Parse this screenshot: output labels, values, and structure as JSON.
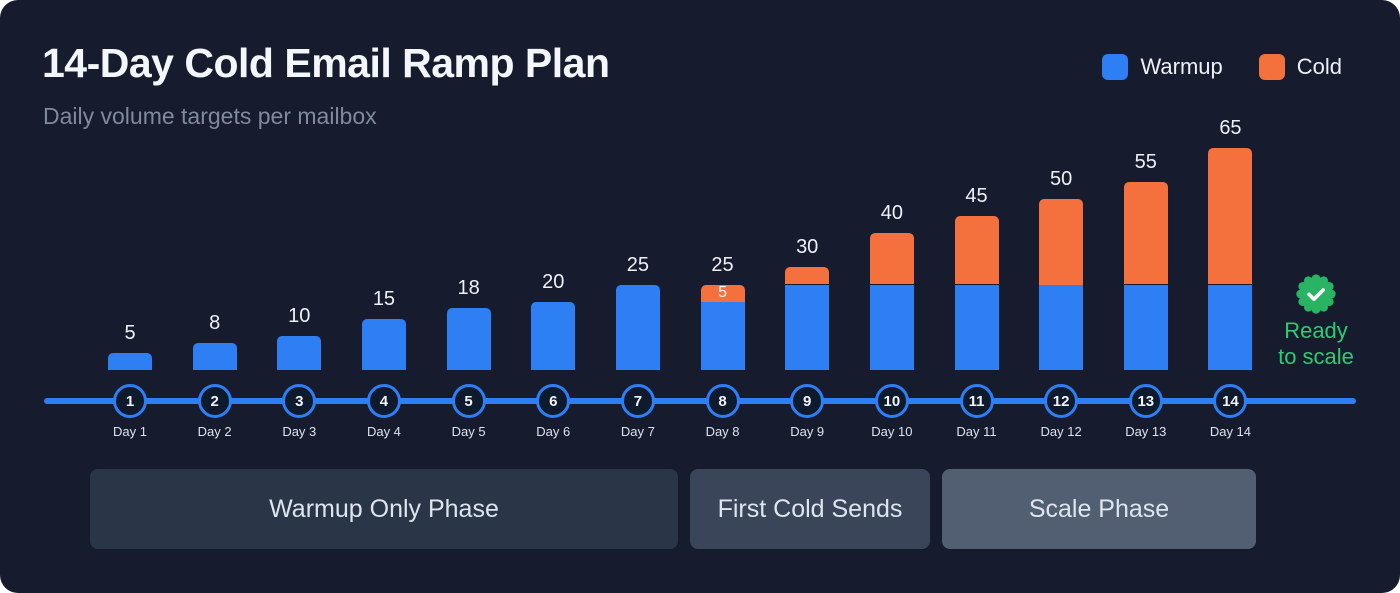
{
  "colors": {
    "background": "#161c2e",
    "accent_blue": "#2e7ef4",
    "accent_orange": "#f4703c",
    "success_green": "#28b463"
  },
  "header": {
    "title": "14-Day Cold Email Ramp Plan",
    "subtitle": "Daily volume targets per mailbox"
  },
  "legend": [
    {
      "label": "Warmup",
      "color": "#2e7ef4"
    },
    {
      "label": "Cold",
      "color": "#f4703c"
    }
  ],
  "chart_data": {
    "type": "bar",
    "stacked": true,
    "title": "14-Day Cold Email Ramp Plan",
    "categories": [
      "Day 1",
      "Day 2",
      "Day 3",
      "Day 4",
      "Day 5",
      "Day 6",
      "Day 7",
      "Day 8",
      "Day 9",
      "Day 10",
      "Day 11",
      "Day 12",
      "Day 13",
      "Day 14"
    ],
    "series": [
      {
        "name": "Warmup",
        "color": "#2e7ef4",
        "values": [
          5,
          8,
          10,
          15,
          18,
          20,
          25,
          20,
          25,
          25,
          25,
          25,
          25,
          25
        ]
      },
      {
        "name": "Cold",
        "color": "#f4703c",
        "values": [
          0,
          0,
          0,
          0,
          0,
          0,
          0,
          5,
          5,
          15,
          20,
          25,
          30,
          40
        ]
      }
    ],
    "total_labels": [
      "5",
      "8",
      "10",
      "15",
      "18",
      "20",
      "25",
      "25",
      "30",
      "40",
      "45",
      "50",
      "55",
      "65"
    ],
    "segment_labels": [
      {
        "day_index": 7,
        "series": "Cold",
        "label": "5"
      }
    ],
    "ylim": [
      0,
      65
    ],
    "grid": false,
    "legend_position": "top-right"
  },
  "timeline": {
    "numbers": [
      "1",
      "2",
      "3",
      "4",
      "5",
      "6",
      "7",
      "8",
      "9",
      "10",
      "11",
      "12",
      "13",
      "14"
    ],
    "labels": [
      "Day 1",
      "Day 2",
      "Day 3",
      "Day 4",
      "Day 5",
      "Day 6",
      "Day 7",
      "Day 8",
      "Day 9",
      "Day 10",
      "Day 11",
      "Day 12",
      "Day 13",
      "Day 14"
    ]
  },
  "phases": [
    {
      "label": "Warmup Only Phase",
      "color": "#2b3548"
    },
    {
      "label": "First Cold Sends",
      "color": "#3a4559"
    },
    {
      "label": "Scale Phase",
      "color": "#525e71"
    }
  ],
  "badge": {
    "icon": "seal-check-icon",
    "text": "Ready to scale",
    "color": "#2ecc71"
  }
}
